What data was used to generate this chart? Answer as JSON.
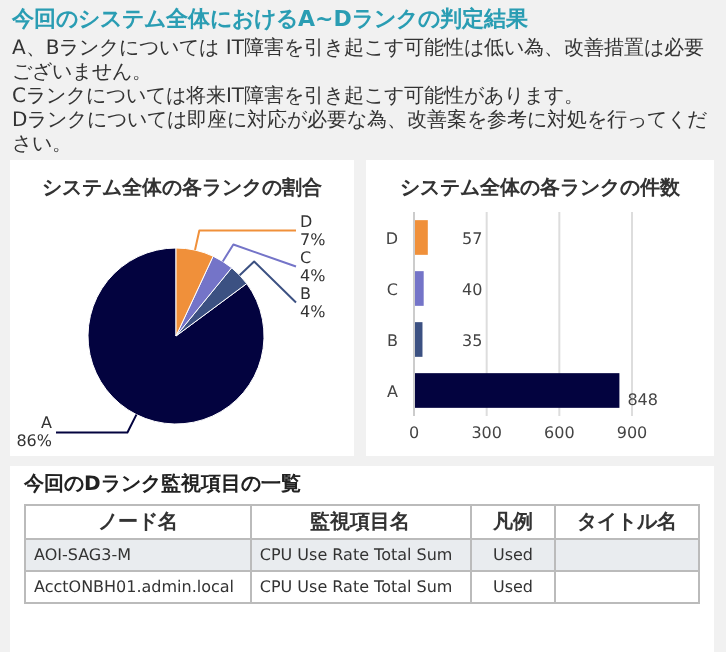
{
  "chart_data": [
    {
      "type": "other",
      "title": "今回のシステム全体におけるA~Dランクの判定結果",
      "annotations": [
        "A、Bランクについては IT障害を引き起こす可能性は低い為、改善措置は必要ございません。",
        "Cランクについては将来IT障害を引き起こす可能性があります。",
        "Dランクについては即座に対応が必要な為、改善案を参考に対処を行ってください。"
      ]
    },
    {
      "type": "pie",
      "title": "システム全体の各ランクの割合",
      "categories": [
        "A",
        "B",
        "C",
        "D"
      ],
      "values": [
        86,
        4,
        4,
        7
      ],
      "colors": [
        "#03033f",
        "#3c5182",
        "#7474c8",
        "#f0903a"
      ],
      "value_labels": [
        "86%",
        "4%",
        "4%",
        "7%"
      ]
    },
    {
      "type": "bar",
      "orientation": "horizontal",
      "title": "システム全体の各ランクの件数",
      "categories": [
        "D",
        "C",
        "B",
        "A"
      ],
      "values": [
        57,
        40,
        35,
        848
      ],
      "colors": [
        "#f0903a",
        "#7474c8",
        "#3c5182",
        "#03033f"
      ],
      "xlim": [
        0,
        900
      ],
      "xticks": [
        0,
        300,
        600,
        900
      ],
      "grid": "x",
      "data_labels": true
    },
    {
      "type": "other",
      "title": "今回のDランク監視項目の一覧",
      "categories": [
        "ノード名",
        "監視項目名",
        "凡例",
        "タイトル名"
      ],
      "cell_labels": [
        [
          "AOI-SAG3-M",
          "CPU Use Rate Total Sum",
          "Used",
          null
        ],
        [
          "AcctONBH01.admin.local",
          "CPU Use Rate Total Sum",
          "Used",
          null
        ]
      ]
    }
  ]
}
